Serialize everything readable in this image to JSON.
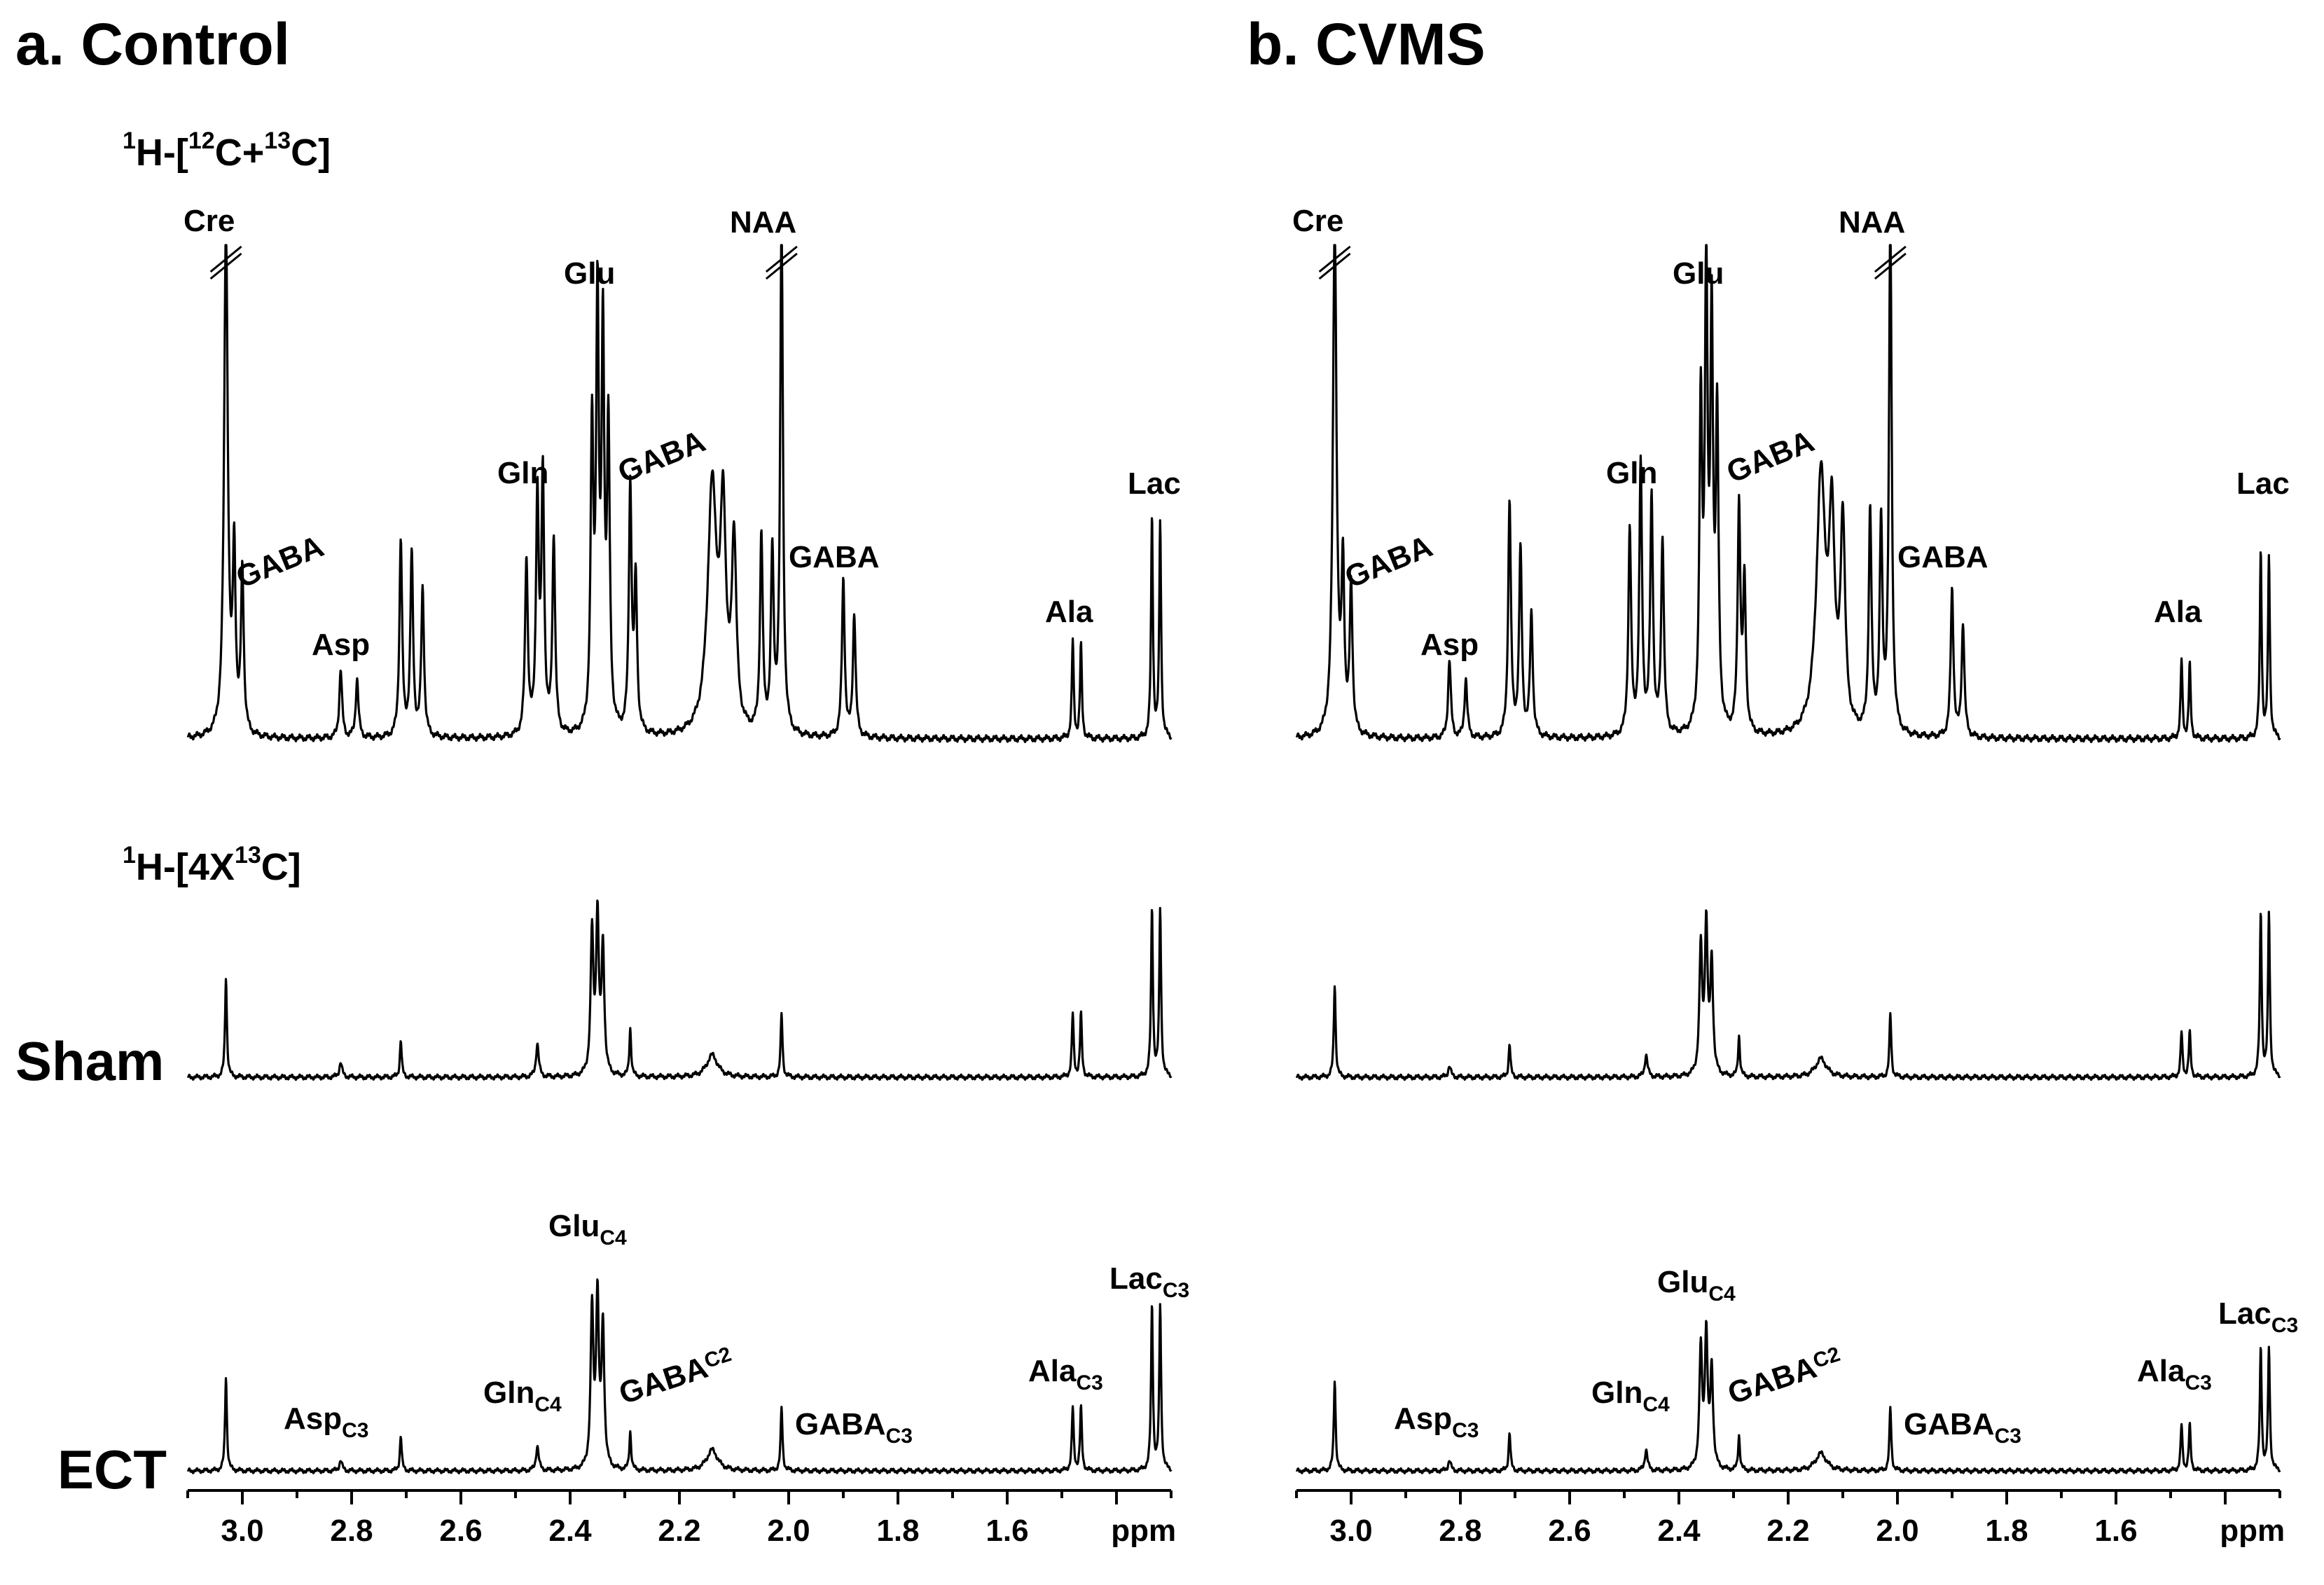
{
  "figure": {
    "row_labels": {
      "sham": "Sham",
      "ect": "ECT"
    },
    "spectrum_headers": {
      "total": {
        "base": "H-[",
        "sup1": "1",
        "sup2": "12",
        "mid": "C+",
        "sup3": "13",
        "end": "C]"
      },
      "labeled": {
        "base": "H-[4X",
        "sup1": "1",
        "sup3": "13",
        "end": "C]"
      }
    },
    "axis": {
      "unit_label": "ppm",
      "ticks": [
        "3.0",
        "2.8",
        "2.6",
        "2.4",
        "2.2",
        "2.0",
        "1.8",
        "1.6"
      ]
    }
  },
  "chart_data": [
    {
      "type": "line",
      "panel": "a",
      "title": "a. Control",
      "xlabel": "ppm",
      "xlim": [
        3.1,
        1.3
      ],
      "x_reversed": true,
      "x_ticks": [
        3.0,
        2.8,
        2.6,
        2.4,
        2.2,
        2.0,
        1.8,
        1.6
      ],
      "series": [
        {
          "name": "1H-[12C+13C]",
          "scale": 1.0,
          "peaks": [
            {
              "ppm": 3.03,
              "height": 1.05,
              "width": 0.004,
              "truncated": true
            },
            {
              "ppm": 3.015,
              "height": 0.36,
              "width": 0.003
            },
            {
              "ppm": 3.0,
              "height": 0.33,
              "width": 0.003
            },
            {
              "ppm": 2.82,
              "height": 0.14,
              "width": 0.003
            },
            {
              "ppm": 2.79,
              "height": 0.12,
              "width": 0.003
            },
            {
              "ppm": 2.71,
              "height": 0.4,
              "width": 0.003
            },
            {
              "ppm": 2.69,
              "height": 0.37,
              "width": 0.003
            },
            {
              "ppm": 2.67,
              "height": 0.3,
              "width": 0.003
            },
            {
              "ppm": 2.48,
              "height": 0.36,
              "width": 0.003
            },
            {
              "ppm": 2.46,
              "height": 0.48,
              "width": 0.003
            },
            {
              "ppm": 2.45,
              "height": 0.52,
              "width": 0.003
            },
            {
              "ppm": 2.43,
              "height": 0.4,
              "width": 0.003
            },
            {
              "ppm": 2.36,
              "height": 0.6,
              "width": 0.003
            },
            {
              "ppm": 2.35,
              "height": 0.85,
              "width": 0.003
            },
            {
              "ppm": 2.34,
              "height": 0.78,
              "width": 0.003
            },
            {
              "ppm": 2.33,
              "height": 0.6,
              "width": 0.003
            },
            {
              "ppm": 2.29,
              "height": 0.5,
              "width": 0.003
            },
            {
              "ppm": 2.28,
              "height": 0.3,
              "width": 0.003
            },
            {
              "ppm": 2.14,
              "height": 0.5,
              "width": 0.01
            },
            {
              "ppm": 2.12,
              "height": 0.42,
              "width": 0.006
            },
            {
              "ppm": 2.1,
              "height": 0.38,
              "width": 0.005
            },
            {
              "ppm": 2.05,
              "height": 0.4,
              "width": 0.003
            },
            {
              "ppm": 2.03,
              "height": 0.36,
              "width": 0.003
            },
            {
              "ppm": 2.013,
              "height": 1.05,
              "width": 0.003,
              "truncated": true
            },
            {
              "ppm": 1.9,
              "height": 0.32,
              "width": 0.003
            },
            {
              "ppm": 1.88,
              "height": 0.25,
              "width": 0.003
            },
            {
              "ppm": 1.48,
              "height": 0.2,
              "width": 0.002
            },
            {
              "ppm": 1.465,
              "height": 0.19,
              "width": 0.002
            },
            {
              "ppm": 1.335,
              "height": 0.45,
              "width": 0.002
            },
            {
              "ppm": 1.32,
              "height": 0.44,
              "width": 0.002
            }
          ]
        },
        {
          "name": "1H-[4X13C] Sham",
          "peaks": [
            {
              "ppm": 3.03,
              "height": 0.27,
              "width": 0.002
            },
            {
              "ppm": 2.82,
              "height": 0.04,
              "width": 0.003
            },
            {
              "ppm": 2.71,
              "height": 0.1,
              "width": 0.002
            },
            {
              "ppm": 2.46,
              "height": 0.09,
              "width": 0.003
            },
            {
              "ppm": 2.36,
              "height": 0.38,
              "width": 0.003
            },
            {
              "ppm": 2.35,
              "height": 0.42,
              "width": 0.003
            },
            {
              "ppm": 2.34,
              "height": 0.34,
              "width": 0.003
            },
            {
              "ppm": 2.29,
              "height": 0.13,
              "width": 0.002
            },
            {
              "ppm": 2.14,
              "height": 0.06,
              "width": 0.012
            },
            {
              "ppm": 2.013,
              "height": 0.17,
              "width": 0.002
            },
            {
              "ppm": 1.48,
              "height": 0.17,
              "width": 0.002
            },
            {
              "ppm": 1.465,
              "height": 0.17,
              "width": 0.002
            },
            {
              "ppm": 1.335,
              "height": 0.45,
              "width": 0.002
            },
            {
              "ppm": 1.32,
              "height": 0.45,
              "width": 0.002
            }
          ]
        },
        {
          "name": "1H-[4X13C] ECT",
          "peaks": [
            {
              "ppm": 3.03,
              "height": 0.27,
              "width": 0.002
            },
            {
              "ppm": 2.82,
              "height": 0.03,
              "width": 0.003
            },
            {
              "ppm": 2.71,
              "height": 0.1,
              "width": 0.002
            },
            {
              "ppm": 2.46,
              "height": 0.07,
              "width": 0.003
            },
            {
              "ppm": 2.36,
              "height": 0.45,
              "width": 0.003
            },
            {
              "ppm": 2.35,
              "height": 0.48,
              "width": 0.003
            },
            {
              "ppm": 2.34,
              "height": 0.4,
              "width": 0.003
            },
            {
              "ppm": 2.29,
              "height": 0.11,
              "width": 0.002
            },
            {
              "ppm": 2.14,
              "height": 0.06,
              "width": 0.012
            },
            {
              "ppm": 2.013,
              "height": 0.18,
              "width": 0.002
            },
            {
              "ppm": 1.48,
              "height": 0.18,
              "width": 0.002
            },
            {
              "ppm": 1.465,
              "height": 0.18,
              "width": 0.002
            },
            {
              "ppm": 1.335,
              "height": 0.47,
              "width": 0.002
            },
            {
              "ppm": 1.32,
              "height": 0.47,
              "width": 0.002
            }
          ]
        }
      ]
    },
    {
      "type": "line",
      "panel": "b",
      "title": "b. CVMS",
      "xlabel": "ppm",
      "xlim": [
        3.1,
        1.3
      ],
      "x_reversed": true,
      "x_ticks": [
        3.0,
        2.8,
        2.6,
        2.4,
        2.2,
        2.0,
        1.8,
        1.6
      ],
      "series": [
        {
          "name": "1H-[12C+13C]",
          "peaks": [
            {
              "ppm": 3.03,
              "height": 1.05,
              "width": 0.004,
              "truncated": true
            },
            {
              "ppm": 3.015,
              "height": 0.33,
              "width": 0.003
            },
            {
              "ppm": 3.0,
              "height": 0.3,
              "width": 0.003
            },
            {
              "ppm": 2.82,
              "height": 0.16,
              "width": 0.003
            },
            {
              "ppm": 2.79,
              "height": 0.12,
              "width": 0.003
            },
            {
              "ppm": 2.71,
              "height": 0.48,
              "width": 0.003
            },
            {
              "ppm": 2.69,
              "height": 0.38,
              "width": 0.003
            },
            {
              "ppm": 2.67,
              "height": 0.25,
              "width": 0.003
            },
            {
              "ppm": 2.49,
              "height": 0.42,
              "width": 0.003
            },
            {
              "ppm": 2.47,
              "height": 0.55,
              "width": 0.003
            },
            {
              "ppm": 2.45,
              "height": 0.48,
              "width": 0.003
            },
            {
              "ppm": 2.43,
              "height": 0.4,
              "width": 0.003
            },
            {
              "ppm": 2.36,
              "height": 0.65,
              "width": 0.003
            },
            {
              "ppm": 2.35,
              "height": 0.92,
              "width": 0.003
            },
            {
              "ppm": 2.34,
              "height": 0.8,
              "width": 0.003
            },
            {
              "ppm": 2.33,
              "height": 0.62,
              "width": 0.003
            },
            {
              "ppm": 2.29,
              "height": 0.46,
              "width": 0.003
            },
            {
              "ppm": 2.28,
              "height": 0.3,
              "width": 0.003
            },
            {
              "ppm": 2.14,
              "height": 0.52,
              "width": 0.01
            },
            {
              "ppm": 2.12,
              "height": 0.4,
              "width": 0.006
            },
            {
              "ppm": 2.1,
              "height": 0.42,
              "width": 0.005
            },
            {
              "ppm": 2.05,
              "height": 0.45,
              "width": 0.003
            },
            {
              "ppm": 2.03,
              "height": 0.42,
              "width": 0.003
            },
            {
              "ppm": 2.013,
              "height": 1.05,
              "width": 0.003,
              "truncated": true
            },
            {
              "ppm": 1.9,
              "height": 0.3,
              "width": 0.003
            },
            {
              "ppm": 1.88,
              "height": 0.23,
              "width": 0.003
            },
            {
              "ppm": 1.48,
              "height": 0.16,
              "width": 0.002
            },
            {
              "ppm": 1.465,
              "height": 0.15,
              "width": 0.002
            },
            {
              "ppm": 1.335,
              "height": 0.38,
              "width": 0.002
            },
            {
              "ppm": 1.32,
              "height": 0.37,
              "width": 0.002
            }
          ]
        },
        {
          "name": "1H-[4X13C] Sham",
          "peaks": [
            {
              "ppm": 3.03,
              "height": 0.25,
              "width": 0.002
            },
            {
              "ppm": 2.82,
              "height": 0.03,
              "width": 0.003
            },
            {
              "ppm": 2.71,
              "height": 0.09,
              "width": 0.002
            },
            {
              "ppm": 2.46,
              "height": 0.06,
              "width": 0.003
            },
            {
              "ppm": 2.36,
              "height": 0.34,
              "width": 0.003
            },
            {
              "ppm": 2.35,
              "height": 0.4,
              "width": 0.003
            },
            {
              "ppm": 2.34,
              "height": 0.3,
              "width": 0.003
            },
            {
              "ppm": 2.29,
              "height": 0.11,
              "width": 0.002
            },
            {
              "ppm": 2.14,
              "height": 0.05,
              "width": 0.012
            },
            {
              "ppm": 2.013,
              "height": 0.17,
              "width": 0.002
            },
            {
              "ppm": 1.48,
              "height": 0.12,
              "width": 0.002
            },
            {
              "ppm": 1.465,
              "height": 0.12,
              "width": 0.002
            },
            {
              "ppm": 1.335,
              "height": 0.44,
              "width": 0.002
            },
            {
              "ppm": 1.32,
              "height": 0.44,
              "width": 0.002
            }
          ]
        },
        {
          "name": "1H-[4X13C] ECT",
          "peaks": [
            {
              "ppm": 3.03,
              "height": 0.26,
              "width": 0.002
            },
            {
              "ppm": 2.82,
              "height": 0.03,
              "width": 0.003
            },
            {
              "ppm": 2.71,
              "height": 0.11,
              "width": 0.002
            },
            {
              "ppm": 2.46,
              "height": 0.06,
              "width": 0.003
            },
            {
              "ppm": 2.36,
              "height": 0.34,
              "width": 0.003
            },
            {
              "ppm": 2.35,
              "height": 0.38,
              "width": 0.003
            },
            {
              "ppm": 2.34,
              "height": 0.28,
              "width": 0.003
            },
            {
              "ppm": 2.29,
              "height": 0.1,
              "width": 0.002
            },
            {
              "ppm": 2.14,
              "height": 0.05,
              "width": 0.012
            },
            {
              "ppm": 2.013,
              "height": 0.18,
              "width": 0.002
            },
            {
              "ppm": 1.48,
              "height": 0.13,
              "width": 0.002
            },
            {
              "ppm": 1.465,
              "height": 0.13,
              "width": 0.002
            },
            {
              "ppm": 1.335,
              "height": 0.35,
              "width": 0.002
            },
            {
              "ppm": 1.32,
              "height": 0.35,
              "width": 0.002
            }
          ]
        }
      ]
    }
  ],
  "annotations": {
    "top": [
      {
        "key": "cre",
        "text": "Cre"
      },
      {
        "key": "gaba1",
        "text": "GABA"
      },
      {
        "key": "asp",
        "text": "Asp"
      },
      {
        "key": "gln",
        "text": "Gln"
      },
      {
        "key": "glu",
        "text": "Glu"
      },
      {
        "key": "gaba2",
        "text": "GABA"
      },
      {
        "key": "naa",
        "text": "NAA"
      },
      {
        "key": "gaba3",
        "text": "GABA"
      },
      {
        "key": "ala",
        "text": "Ala"
      },
      {
        "key": "lac",
        "text": "Lac"
      }
    ],
    "bottom": [
      {
        "key": "asp",
        "text": "Asp",
        "sub": "C3"
      },
      {
        "key": "gln",
        "text": "Gln",
        "sub": "C4"
      },
      {
        "key": "glu",
        "text": "Glu",
        "sub": "C4"
      },
      {
        "key": "gaba_c2",
        "text": "GABA",
        "sub": "C2"
      },
      {
        "key": "gaba_c3",
        "text": "GABA",
        "sub": "C3"
      },
      {
        "key": "ala",
        "text": "Ala",
        "sub": "C3"
      },
      {
        "key": "lac",
        "text": "Lac",
        "sub": "C3"
      }
    ]
  }
}
